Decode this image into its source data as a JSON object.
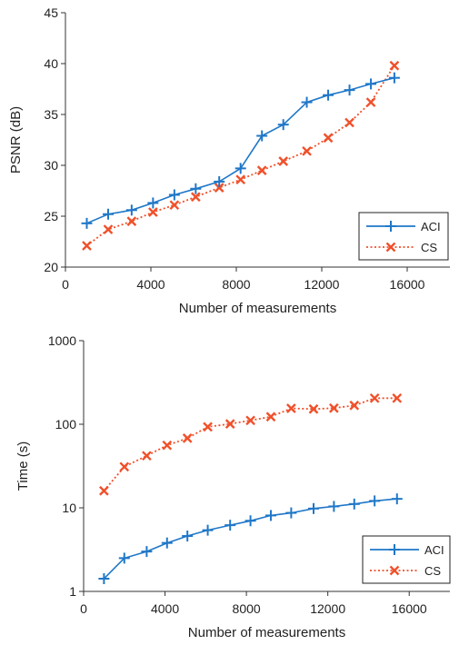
{
  "chart_data": [
    {
      "type": "line",
      "xlabel": "Number of measurements",
      "ylabel": "PSNR (dB)",
      "xlim": [
        0,
        18000
      ],
      "ylim": [
        20,
        45
      ],
      "xticks": [
        0,
        4000,
        8000,
        12000,
        16000
      ],
      "yticks": [
        20,
        25,
        30,
        35,
        40,
        45
      ],
      "xtick_labels": [
        "0",
        "4000",
        "8000",
        "12000",
        "16000"
      ],
      "ytick_labels": [
        "20",
        "25",
        "30",
        "35",
        "40",
        "45"
      ],
      "yscale": "linear",
      "grid": false,
      "legend_position": "bottom-right",
      "series": [
        {
          "name": "ACI",
          "color": "#1f77c8",
          "line_style": "solid",
          "marker": "plus",
          "x": [
            1000,
            2000,
            3100,
            4100,
            5100,
            6100,
            7200,
            8200,
            9200,
            10200,
            11300,
            12300,
            13300,
            14300,
            15400
          ],
          "y": [
            24.3,
            25.2,
            25.6,
            26.3,
            27.1,
            27.7,
            28.4,
            29.7,
            32.9,
            34.0,
            36.2,
            36.9,
            37.4,
            38.0,
            38.6
          ]
        },
        {
          "name": "CS",
          "color": "#f0502a",
          "line_style": "dotted",
          "marker": "x",
          "x": [
            1000,
            2000,
            3100,
            4100,
            5100,
            6100,
            7200,
            8200,
            9200,
            10200,
            11300,
            12300,
            13300,
            14300,
            15400
          ],
          "y": [
            22.1,
            23.7,
            24.5,
            25.4,
            26.1,
            26.9,
            27.8,
            28.6,
            29.5,
            30.4,
            31.4,
            32.7,
            34.2,
            36.2,
            39.8
          ]
        }
      ]
    },
    {
      "type": "line",
      "xlabel": "Number of measurements",
      "ylabel": "Time (s)",
      "xlim": [
        0,
        18000
      ],
      "ylim": [
        1,
        1000
      ],
      "xticks": [
        0,
        4000,
        8000,
        12000,
        16000
      ],
      "yticks": [
        1,
        10,
        100,
        1000
      ],
      "xtick_labels": [
        "0",
        "4000",
        "8000",
        "12000",
        "16000"
      ],
      "ytick_labels": [
        "1",
        "10",
        "100",
        "1000"
      ],
      "yscale": "log",
      "grid": false,
      "legend_position": "bottom-right",
      "series": [
        {
          "name": "ACI",
          "color": "#1f77c8",
          "line_style": "solid",
          "marker": "plus",
          "x": [
            1000,
            2000,
            3100,
            4100,
            5100,
            6100,
            7200,
            8200,
            9200,
            10200,
            11300,
            12300,
            13300,
            14300,
            15400
          ],
          "y": [
            1.42,
            2.5,
            3.0,
            3.8,
            4.6,
            5.4,
            6.2,
            7.0,
            8.1,
            8.7,
            9.8,
            10.4,
            11.1,
            12.1,
            12.8
          ]
        },
        {
          "name": "CS",
          "color": "#f0502a",
          "line_style": "dotted",
          "marker": "x",
          "x": [
            1000,
            2000,
            3100,
            4100,
            5100,
            6100,
            7200,
            8200,
            9200,
            10200,
            11300,
            12300,
            13300,
            14300,
            15400
          ],
          "y": [
            16,
            31,
            42,
            56,
            68,
            93,
            101,
            111,
            123,
            155,
            152,
            156,
            168,
            205,
            205
          ]
        }
      ]
    }
  ]
}
